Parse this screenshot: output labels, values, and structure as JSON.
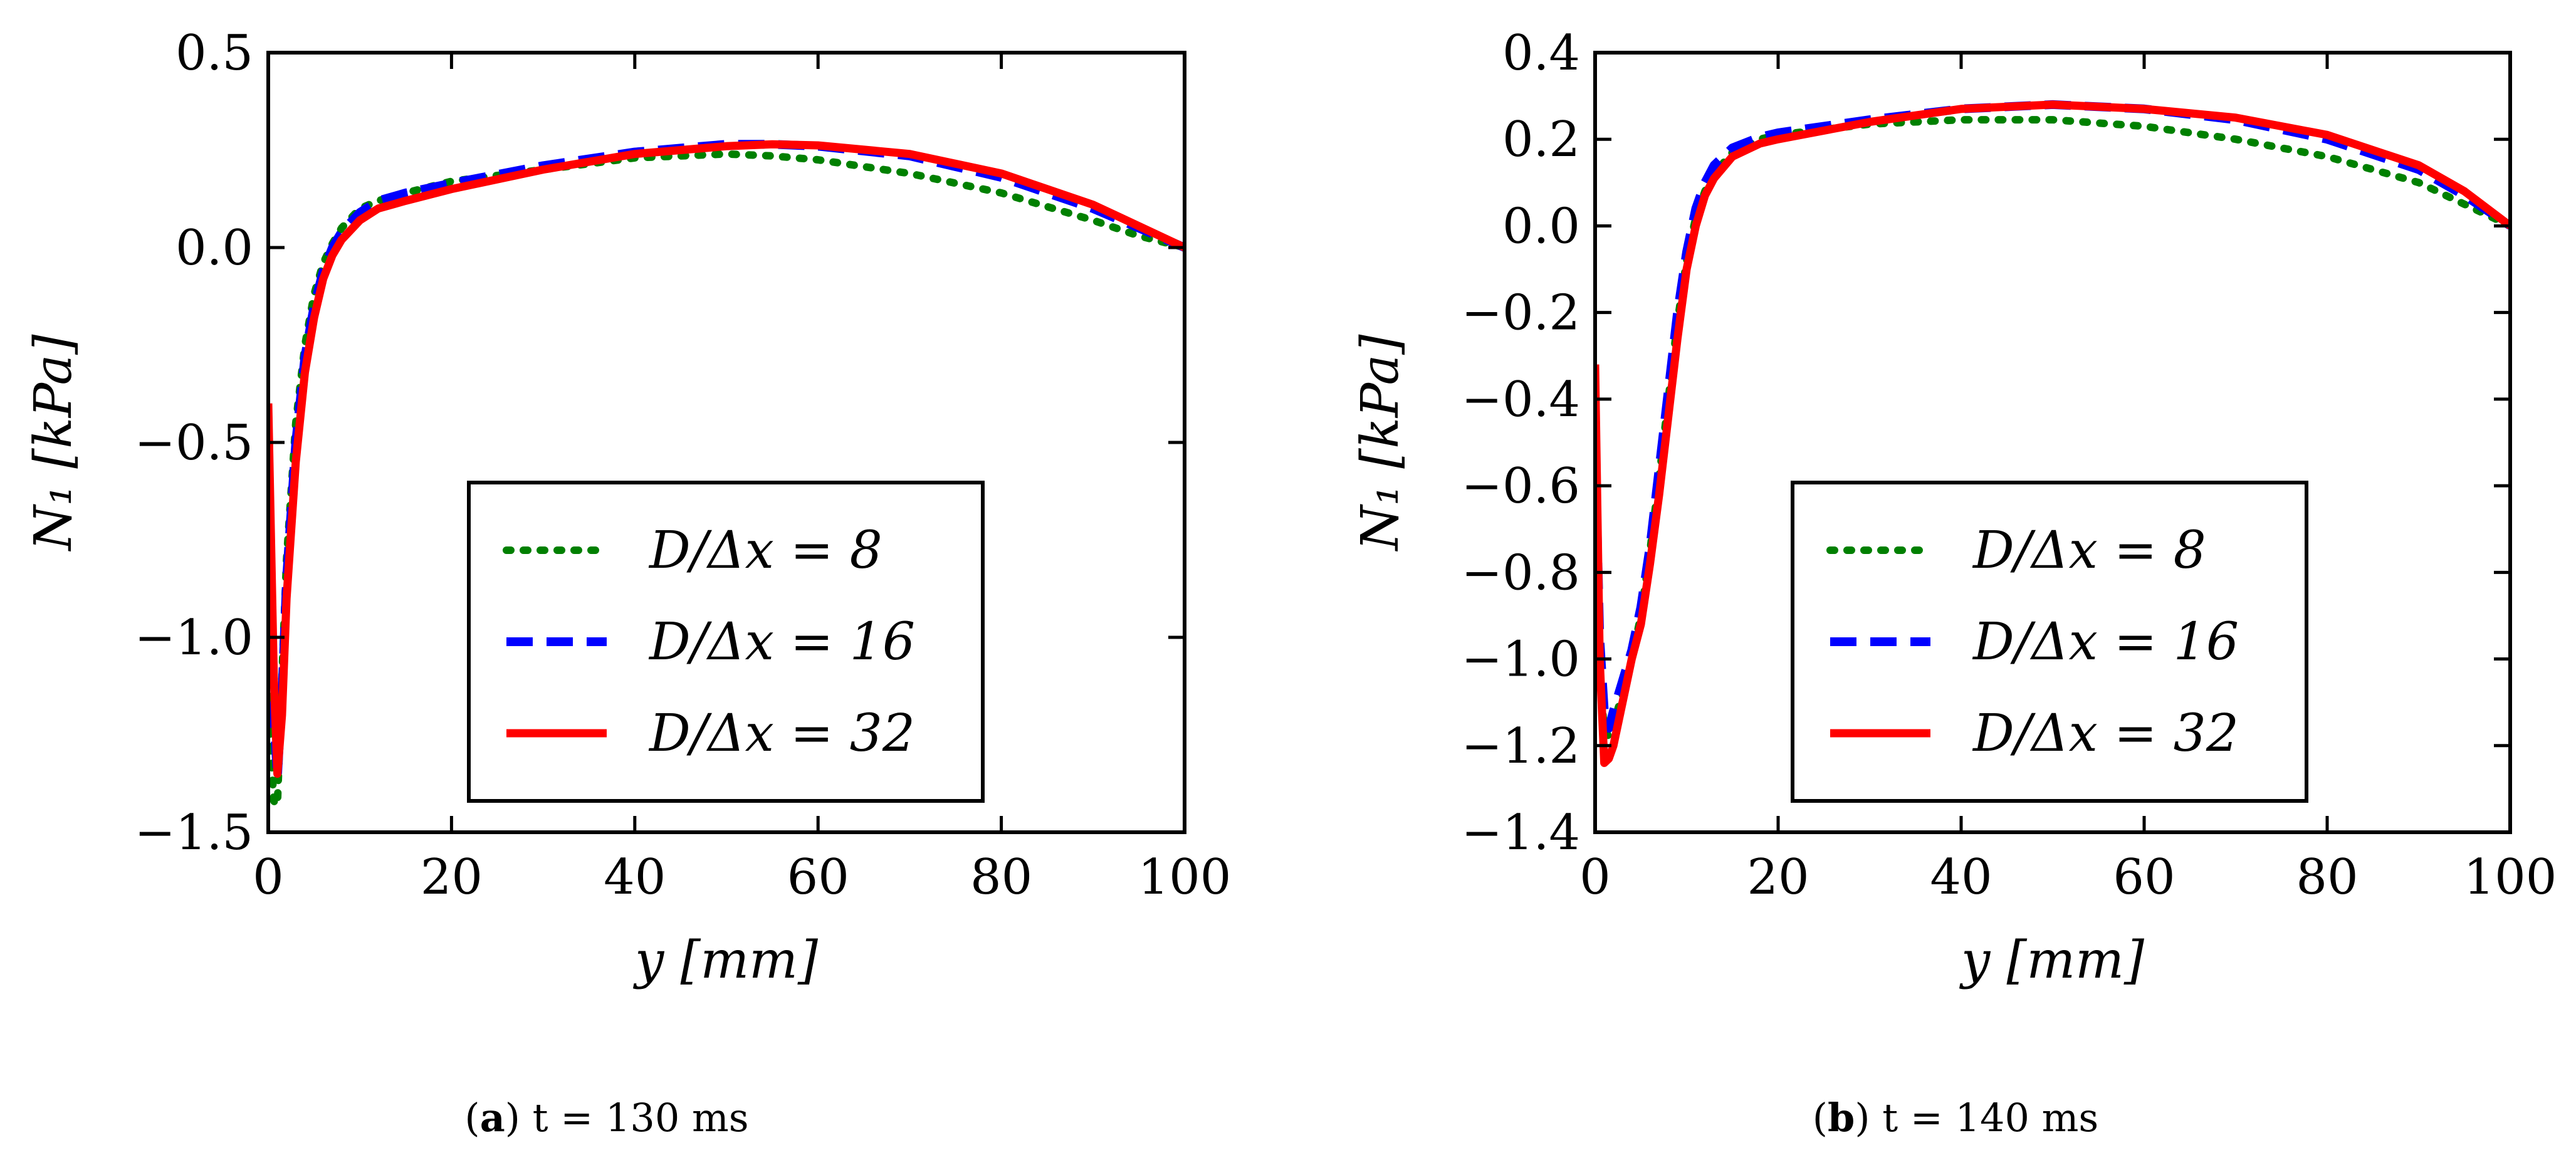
{
  "chart_data": [
    {
      "type": "line",
      "caption": {
        "letter": "a",
        "time": "t = 130 ms"
      },
      "xlabel": "y [mm]",
      "ylabel": "N₁ [kPa]",
      "xlim": [
        0,
        100
      ],
      "ylim": [
        -1.5,
        0.5
      ],
      "x_ticks": [
        0,
        20,
        40,
        60,
        80,
        100
      ],
      "y_ticks": [
        -1.5,
        -1.0,
        -0.5,
        0.0,
        0.5
      ],
      "x_tick_labels": [
        "0",
        "20",
        "40",
        "60",
        "80",
        "100"
      ],
      "y_tick_labels": [
        "−1.5",
        "−1.0",
        "−0.5",
        "0.0",
        "0.5"
      ],
      "legend_position": "lower-center",
      "grid": false,
      "series": [
        {
          "name": "D/Δx = 8",
          "color": "#008000",
          "style": "dotted",
          "x": [
            0,
            0.6,
            1.0,
            1.5,
            2,
            3,
            4,
            5,
            6,
            7,
            8,
            10,
            12,
            15,
            20,
            30,
            40,
            50,
            55,
            60,
            70,
            80,
            90,
            95,
            100
          ],
          "y": [
            -1.15,
            -1.42,
            -1.43,
            -1.1,
            -0.8,
            -0.45,
            -0.25,
            -0.12,
            -0.04,
            0.01,
            0.05,
            0.1,
            0.12,
            0.14,
            0.17,
            0.2,
            0.23,
            0.24,
            0.235,
            0.225,
            0.19,
            0.14,
            0.07,
            0.03,
            0.0
          ]
        },
        {
          "name": "D/Δx = 16",
          "color": "#0000ff",
          "style": "dashed",
          "x": [
            0,
            0.6,
            1.0,
            1.5,
            2,
            3,
            4,
            5,
            6,
            7,
            8,
            10,
            12,
            15,
            20,
            30,
            40,
            50,
            55,
            60,
            70,
            80,
            90,
            95,
            100
          ],
          "y": [
            -0.65,
            -1.2,
            -1.36,
            -1.15,
            -0.85,
            -0.5,
            -0.28,
            -0.15,
            -0.06,
            0.0,
            0.04,
            0.09,
            0.12,
            0.14,
            0.165,
            0.21,
            0.245,
            0.265,
            0.265,
            0.26,
            0.235,
            0.18,
            0.1,
            0.05,
            0.0
          ]
        },
        {
          "name": "D/Δx = 32",
          "color": "#ff0000",
          "style": "solid",
          "x": [
            0,
            0.6,
            1.0,
            1.5,
            2,
            3,
            4,
            5,
            6,
            7,
            8,
            10,
            12,
            15,
            20,
            30,
            40,
            50,
            55,
            60,
            70,
            80,
            90,
            95,
            100
          ],
          "y": [
            -0.4,
            -1.1,
            -1.35,
            -1.2,
            -0.9,
            -0.55,
            -0.32,
            -0.18,
            -0.08,
            -0.02,
            0.02,
            0.07,
            0.1,
            0.12,
            0.15,
            0.2,
            0.24,
            0.26,
            0.265,
            0.262,
            0.24,
            0.19,
            0.11,
            0.055,
            0.0
          ]
        }
      ]
    },
    {
      "type": "line",
      "caption": {
        "letter": "b",
        "time": "t = 140 ms"
      },
      "xlabel": "y [mm]",
      "ylabel": "N₁ [kPa]",
      "xlim": [
        0,
        100
      ],
      "ylim": [
        -1.4,
        0.4
      ],
      "x_ticks": [
        0,
        20,
        40,
        60,
        80,
        100
      ],
      "y_ticks": [
        -1.4,
        -1.2,
        -1.0,
        -0.8,
        -0.6,
        -0.4,
        -0.2,
        0.0,
        0.2,
        0.4
      ],
      "x_tick_labels": [
        "0",
        "20",
        "40",
        "60",
        "80",
        "100"
      ],
      "y_tick_labels": [
        "−1.4",
        "−1.2",
        "−1.0",
        "−0.8",
        "−0.6",
        "−0.4",
        "−0.2",
        "0.0",
        "0.2",
        "0.4"
      ],
      "legend_position": "lower-center",
      "grid": false,
      "series": [
        {
          "name": "D/Δx = 8",
          "color": "#008000",
          "style": "dotted",
          "x": [
            0,
            0.5,
            1,
            1.5,
            2,
            3,
            4,
            5,
            6,
            7,
            8,
            9,
            10,
            11,
            12,
            13,
            15,
            18,
            20,
            30,
            40,
            50,
            60,
            70,
            80,
            90,
            95,
            100
          ],
          "y": [
            -0.7,
            -1.05,
            -1.16,
            -1.18,
            -1.15,
            -1.08,
            -1.0,
            -0.9,
            -0.75,
            -0.58,
            -0.4,
            -0.22,
            -0.08,
            0.02,
            0.08,
            0.12,
            0.17,
            0.2,
            0.21,
            0.235,
            0.245,
            0.245,
            0.23,
            0.2,
            0.16,
            0.1,
            0.05,
            0.0
          ]
        },
        {
          "name": "D/Δx = 16",
          "color": "#0000ff",
          "style": "dashed",
          "x": [
            0,
            0.5,
            1,
            1.5,
            2,
            3,
            4,
            5,
            6,
            7,
            8,
            9,
            10,
            11,
            12,
            13,
            15,
            18,
            20,
            30,
            40,
            50,
            60,
            70,
            80,
            90,
            95,
            100
          ],
          "y": [
            -0.5,
            -0.95,
            -1.12,
            -1.16,
            -1.12,
            -1.05,
            -0.98,
            -0.88,
            -0.74,
            -0.56,
            -0.38,
            -0.2,
            -0.06,
            0.04,
            0.1,
            0.14,
            0.18,
            0.205,
            0.215,
            0.245,
            0.27,
            0.28,
            0.27,
            0.245,
            0.2,
            0.13,
            0.07,
            0.0
          ]
        },
        {
          "name": "D/Δx = 32",
          "color": "#ff0000",
          "style": "solid",
          "x": [
            0,
            0.5,
            1,
            1.5,
            2,
            3,
            4,
            5,
            6,
            7,
            8,
            9,
            10,
            11,
            12,
            13,
            15,
            18,
            20,
            30,
            40,
            50,
            60,
            70,
            80,
            90,
            95,
            100
          ],
          "y": [
            -0.32,
            -1.0,
            -1.24,
            -1.23,
            -1.2,
            -1.1,
            -1.0,
            -0.92,
            -0.78,
            -0.62,
            -0.44,
            -0.26,
            -0.1,
            0.0,
            0.07,
            0.11,
            0.16,
            0.19,
            0.2,
            0.24,
            0.27,
            0.28,
            0.27,
            0.25,
            0.21,
            0.14,
            0.08,
            0.0
          ]
        }
      ]
    }
  ]
}
